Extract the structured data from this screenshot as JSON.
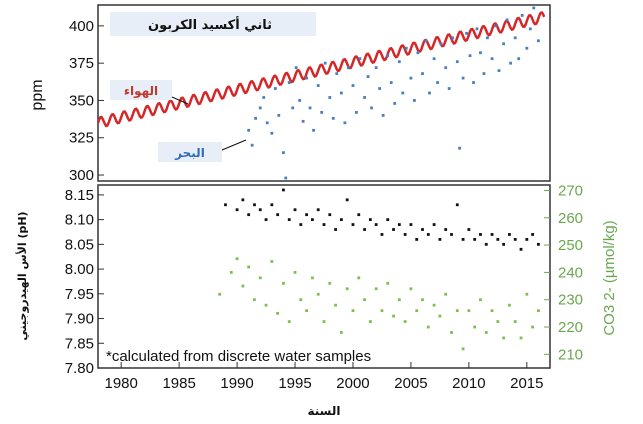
{
  "chart_data": [
    {
      "panel": "top",
      "type": "scatter",
      "title": "ثاني أكسيد الكربون",
      "ylabel": "ppm",
      "xlim": [
        1978,
        2017
      ],
      "ylim": [
        296,
        414
      ],
      "yticks": [
        300,
        325,
        350,
        375,
        400
      ],
      "grid": false,
      "legend": "top-left",
      "series": [
        {
          "name": "الهواء",
          "kind": "seasonal line",
          "color": "#d62728",
          "x_range": [
            1978,
            2016.5
          ],
          "trend_start": 335,
          "trend_end": 406,
          "seasonal_amplitude": 3.5
        },
        {
          "name": "البحر",
          "kind": "scatter",
          "color": "#4a7fc1",
          "points": [
            [
              1991.0,
              330
            ],
            [
              1991.3,
              320
            ],
            [
              1991.6,
              338
            ],
            [
              1992.0,
              345
            ],
            [
              1992.3,
              352
            ],
            [
              1992.6,
              335
            ],
            [
              1993.0,
              328
            ],
            [
              1993.3,
              358
            ],
            [
              1993.6,
              340
            ],
            [
              1994.0,
              315
            ],
            [
              1994.2,
              298
            ],
            [
              1994.5,
              362
            ],
            [
              1994.8,
              345
            ],
            [
              1995.1,
              372
            ],
            [
              1995.4,
              350
            ],
            [
              1995.7,
              336
            ],
            [
              1996.0,
              365
            ],
            [
              1996.3,
              345
            ],
            [
              1996.6,
              330
            ],
            [
              1997.0,
              360
            ],
            [
              1997.3,
              342
            ],
            [
              1997.6,
              375
            ],
            [
              1998.0,
              352
            ],
            [
              1998.3,
              338
            ],
            [
              1998.6,
              368
            ],
            [
              1999.0,
              355
            ],
            [
              1999.3,
              335
            ],
            [
              1999.6,
              372
            ],
            [
              2000.0,
              360
            ],
            [
              2000.3,
              342
            ],
            [
              2000.6,
              378
            ],
            [
              2001.0,
              352
            ],
            [
              2001.3,
              366
            ],
            [
              2001.6,
              345
            ],
            [
              2002.0,
              372
            ],
            [
              2002.3,
              358
            ],
            [
              2002.6,
              340
            ],
            [
              2003.0,
              380
            ],
            [
              2003.3,
              362
            ],
            [
              2003.6,
              348
            ],
            [
              2004.0,
              376
            ],
            [
              2004.3,
              355
            ],
            [
              2004.6,
              385
            ],
            [
              2005.0,
              365
            ],
            [
              2005.3,
              350
            ],
            [
              2005.6,
              382
            ],
            [
              2006.0,
              368
            ],
            [
              2006.3,
              390
            ],
            [
              2006.6,
              355
            ],
            [
              2007.0,
              378
            ],
            [
              2007.3,
              362
            ],
            [
              2007.6,
              388
            ],
            [
              2008.0,
              372
            ],
            [
              2008.3,
              358
            ],
            [
              2008.6,
              392
            ],
            [
              2009.0,
              376
            ],
            [
              2009.2,
              318
            ],
            [
              2009.5,
              365
            ],
            [
              2009.8,
              395
            ],
            [
              2010.1,
              380
            ],
            [
              2010.4,
              362
            ],
            [
              2010.7,
              398
            ],
            [
              2011.0,
              382
            ],
            [
              2011.3,
              368
            ],
            [
              2011.6,
              392
            ],
            [
              2012.0,
              378
            ],
            [
              2012.3,
              400
            ],
            [
              2012.6,
              370
            ],
            [
              2013.0,
              388
            ],
            [
              2013.3,
              404
            ],
            [
              2013.6,
              375
            ],
            [
              2014.0,
              392
            ],
            [
              2014.3,
              378
            ],
            [
              2014.6,
              407
            ],
            [
              2015.0,
              385
            ],
            [
              2015.3,
              398
            ],
            [
              2015.6,
              412
            ],
            [
              2016.0,
              390
            ]
          ]
        }
      ]
    },
    {
      "panel": "bottom",
      "type": "scatter",
      "note": "*calculated from discrete water samples",
      "xlabel": "السنة",
      "ylabel_left": "الأس الهيدروجيني (pH)",
      "ylabel_right": "CO3 2- (µmol/kg)",
      "xlim": [
        1978,
        2017
      ],
      "ylim_left": [
        7.8,
        8.17
      ],
      "ylim_right": [
        205,
        272
      ],
      "xticks": [
        1980,
        1985,
        1990,
        1995,
        2000,
        2005,
        2010,
        2015
      ],
      "yticks_left": [
        7.8,
        7.85,
        7.9,
        7.95,
        8.0,
        8.05,
        8.1,
        8.15
      ],
      "yticks_right": [
        210,
        220,
        230,
        240,
        250,
        260,
        270
      ],
      "grid": false,
      "series": [
        {
          "name": "pH",
          "axis": "left",
          "color": "#111111",
          "points": [
            [
              1989.0,
              8.13
            ],
            [
              1990.0,
              8.12
            ],
            [
              1990.5,
              8.14
            ],
            [
              1991.0,
              8.11
            ],
            [
              1991.5,
              8.13
            ],
            [
              1992.0,
              8.12
            ],
            [
              1992.5,
              8.1
            ],
            [
              1993.0,
              8.13
            ],
            [
              1993.5,
              8.11
            ],
            [
              1994.0,
              8.16
            ],
            [
              1994.5,
              8.1
            ],
            [
              1995.0,
              8.12
            ],
            [
              1995.5,
              8.09
            ],
            [
              1996.0,
              8.11
            ],
            [
              1996.5,
              8.1
            ],
            [
              1997.0,
              8.12
            ],
            [
              1997.5,
              8.09
            ],
            [
              1998.0,
              8.11
            ],
            [
              1998.5,
              8.08
            ],
            [
              1999.0,
              8.1
            ],
            [
              1999.5,
              8.14
            ],
            [
              2000.0,
              8.09
            ],
            [
              2000.5,
              8.11
            ],
            [
              2001.0,
              8.08
            ],
            [
              2001.5,
              8.1
            ],
            [
              2002.0,
              8.09
            ],
            [
              2002.5,
              8.07
            ],
            [
              2003.0,
              8.1
            ],
            [
              2003.5,
              8.08
            ],
            [
              2004.0,
              8.09
            ],
            [
              2004.5,
              8.07
            ],
            [
              2005.0,
              8.09
            ],
            [
              2005.5,
              8.06
            ],
            [
              2006.0,
              8.08
            ],
            [
              2006.5,
              8.07
            ],
            [
              2007.0,
              8.09
            ],
            [
              2007.5,
              8.06
            ],
            [
              2008.0,
              8.08
            ],
            [
              2008.5,
              8.07
            ],
            [
              2009.0,
              8.13
            ],
            [
              2009.5,
              8.06
            ],
            [
              2010.0,
              8.08
            ],
            [
              2010.5,
              8.06
            ],
            [
              2011.0,
              8.07
            ],
            [
              2011.5,
              8.05
            ],
            [
              2012.0,
              8.07
            ],
            [
              2012.5,
              8.06
            ],
            [
              2013.0,
              8.05
            ],
            [
              2013.5,
              8.07
            ],
            [
              2014.0,
              8.06
            ],
            [
              2014.5,
              8.04
            ],
            [
              2015.0,
              8.06
            ],
            [
              2015.5,
              8.07
            ],
            [
              2016.0,
              8.05
            ]
          ]
        },
        {
          "name": "CO3 2-",
          "axis": "right",
          "color": "#7fbf4d",
          "points": [
            [
              1988.5,
              232
            ],
            [
              1989.5,
              240
            ],
            [
              1990.0,
              245
            ],
            [
              1990.5,
              235
            ],
            [
              1991.0,
              242
            ],
            [
              1991.5,
              230
            ],
            [
              1992.0,
              238
            ],
            [
              1992.5,
              228
            ],
            [
              1993.0,
              244
            ],
            [
              1993.5,
              225
            ],
            [
              1994.0,
              236
            ],
            [
              1994.5,
              222
            ],
            [
              1995.0,
              240
            ],
            [
              1995.5,
              230
            ],
            [
              1996.0,
              226
            ],
            [
              1996.5,
              238
            ],
            [
              1997.0,
              232
            ],
            [
              1997.5,
              222
            ],
            [
              1998.0,
              236
            ],
            [
              1998.5,
              228
            ],
            [
              1999.0,
              218
            ],
            [
              1999.5,
              234
            ],
            [
              2000.0,
              226
            ],
            [
              2000.5,
              238
            ],
            [
              2001.0,
              230
            ],
            [
              2001.5,
              222
            ],
            [
              2002.0,
              234
            ],
            [
              2002.5,
              226
            ],
            [
              2003.0,
              236
            ],
            [
              2003.5,
              224
            ],
            [
              2004.0,
              230
            ],
            [
              2004.5,
              222
            ],
            [
              2005.0,
              234
            ],
            [
              2005.5,
              226
            ],
            [
              2006.0,
              230
            ],
            [
              2006.5,
              220
            ],
            [
              2007.0,
              228
            ],
            [
              2007.5,
              224
            ],
            [
              2008.0,
              232
            ],
            [
              2008.5,
              218
            ],
            [
              2009.0,
              226
            ],
            [
              2009.5,
              212
            ],
            [
              2010.0,
              226
            ],
            [
              2010.5,
              220
            ],
            [
              2011.0,
              230
            ],
            [
              2011.5,
              218
            ],
            [
              2012.0,
              226
            ],
            [
              2012.5,
              222
            ],
            [
              2013.0,
              216
            ],
            [
              2013.5,
              228
            ],
            [
              2014.0,
              222
            ],
            [
              2014.5,
              216
            ],
            [
              2015.0,
              232
            ],
            [
              2015.5,
              220
            ],
            [
              2016.0,
              226
            ]
          ]
        }
      ]
    }
  ]
}
